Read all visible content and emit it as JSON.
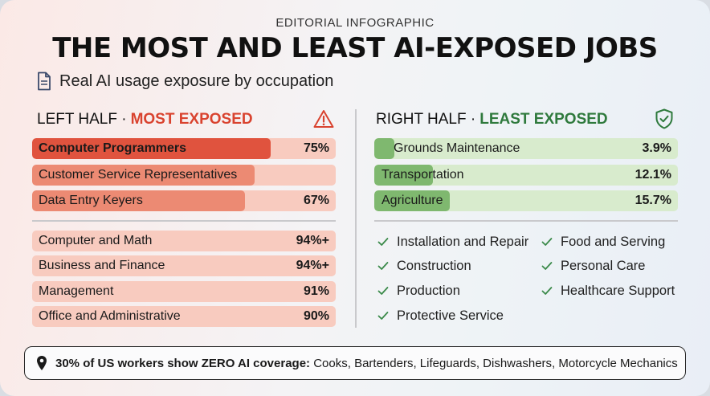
{
  "header": {
    "eyebrow": "EDITORIAL INFOGRAPHIC",
    "title": "THE MOST AND LEAST AI-EXPOSED JOBS",
    "subtitle": "Real AI usage exposure by occupation"
  },
  "left": {
    "head_prefix": "LEFT HALF ·",
    "head_highlight": "MOST EXPOSED",
    "top_bars": [
      {
        "label": "Computer Programmers",
        "value": "75%",
        "level": 75,
        "emphasis": true
      },
      {
        "label": "Customer Service Representatives",
        "value": "",
        "level": 70,
        "emphasis": false
      },
      {
        "label": "Data Entry Keyers",
        "value": "67%",
        "level": 67,
        "emphasis": false
      }
    ],
    "category_bars": [
      {
        "label": "Computer and Math",
        "value": "94%+"
      },
      {
        "label": "Business and Finance",
        "value": "94%+"
      },
      {
        "label": "Management",
        "value": "91%"
      },
      {
        "label": "Office and Administrative",
        "value": "90%"
      }
    ]
  },
  "right": {
    "head_prefix": "RIGHT HALF ·",
    "head_highlight": "LEAST EXPOSED",
    "bars": [
      {
        "label": "Grounds Maintenance",
        "value": "3.9%",
        "level": 3.9
      },
      {
        "label": "Transportation",
        "value": "12.1%",
        "level": 12.1
      },
      {
        "label": "Agriculture",
        "value": "15.7%",
        "level": 15.7
      }
    ],
    "checklist_col1": [
      "Installation and Repair",
      "Construction",
      "Production",
      "Protective Service"
    ],
    "checklist_col2": [
      "Food and Serving",
      "Personal Care",
      "Healthcare Support"
    ]
  },
  "footer": {
    "bold": "30% of US workers show ZERO AI coverage:",
    "rest": "Cooks, Bartenders, Lifeguards, Dishwashers, Motorcycle Mechanics"
  },
  "colors": {
    "most_exposed": "#d9432f",
    "least_exposed": "#2f7a3d"
  },
  "icons": [
    "document-icon",
    "warning-icon",
    "shield-check-icon",
    "check-icon",
    "map-pin-icon"
  ]
}
